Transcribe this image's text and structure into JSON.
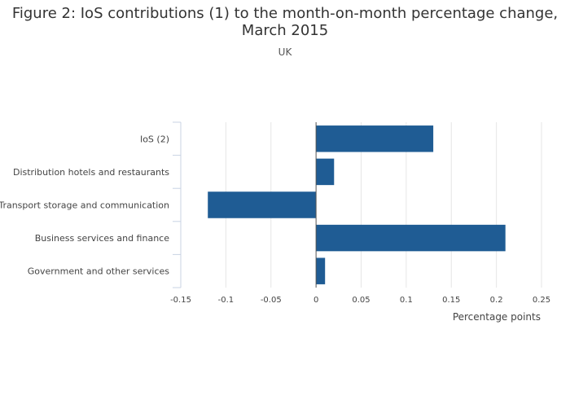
{
  "title_line1": "Figure 2: IoS contributions (1) to the month-on-month percentage change,",
  "title_line2": "March 2015",
  "subtitle": "UK",
  "chart_data": {
    "type": "bar",
    "orientation": "horizontal",
    "categories": [
      "IoS (2)",
      "Distribution hotels and restaurants",
      "Transport storage and communication",
      "Business services and finance",
      "Government and other services"
    ],
    "values": [
      0.13,
      0.02,
      -0.12,
      0.21,
      0.01
    ],
    "xlabel": "Percentage points",
    "ylabel": "",
    "xlim": [
      -0.15,
      0.25
    ],
    "xticks": [
      -0.15,
      -0.1,
      -0.05,
      0,
      0.05,
      0.1,
      0.15,
      0.2,
      0.25
    ],
    "xtick_labels": [
      "-0.15",
      "-0.1",
      "-0.05",
      "0",
      "0.05",
      "0.1",
      "0.15",
      "0.2",
      "0.25"
    ],
    "bar_color": "#1f5c94",
    "grid": true,
    "legend": "none"
  }
}
